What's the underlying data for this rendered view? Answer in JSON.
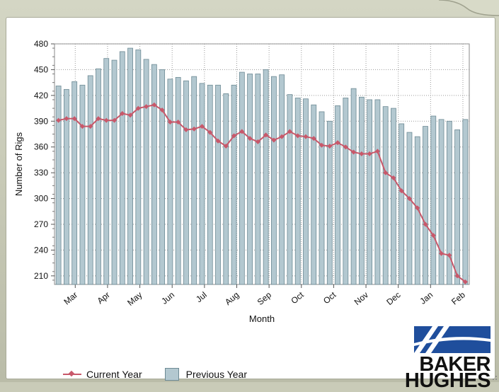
{
  "colors": {
    "current_line": "#c8586a",
    "previous_bar_fill": "#b3c8d0",
    "previous_bar_stroke": "#6d8a94",
    "logo_blue": "#1f4e9c"
  },
  "chart_data": {
    "type": "bar",
    "title": "",
    "xlabel": "Month",
    "ylabel": "Number of Rigs",
    "ylim": [
      200,
      480
    ],
    "yticks": [
      210,
      240,
      270,
      300,
      330,
      360,
      390,
      420,
      450,
      480
    ],
    "grid": true,
    "legend_position": "bottom-left",
    "month_labels": [
      "Mar",
      "Apr",
      "May",
      "Jun",
      "Jul",
      "Aug",
      "Sep",
      "Oct",
      "Oct",
      "Nov",
      "Dec",
      "Jan",
      "Feb"
    ],
    "series": [
      {
        "name": "Current Year",
        "type": "line",
        "values": [
          391,
          393,
          393,
          384,
          384,
          393,
          391,
          391,
          399,
          397,
          405,
          407,
          409,
          403,
          389,
          389,
          380,
          381,
          384,
          377,
          367,
          361,
          373,
          378,
          370,
          366,
          374,
          368,
          372,
          378,
          373,
          372,
          370,
          362,
          361,
          365,
          360,
          354,
          352,
          352,
          355,
          330,
          324,
          309,
          300,
          289,
          270,
          257,
          236,
          234,
          210,
          203
        ]
      },
      {
        "name": "Previous Year",
        "type": "bar",
        "values": [
          431,
          427,
          436,
          432,
          443,
          451,
          463,
          461,
          471,
          475,
          473,
          462,
          456,
          450,
          439,
          441,
          437,
          442,
          434,
          432,
          432,
          422,
          432,
          447,
          445,
          445,
          450,
          442,
          444,
          421,
          417,
          416,
          409,
          401,
          390,
          408,
          417,
          428,
          418,
          415,
          415,
          407,
          405,
          387,
          377,
          372,
          384,
          396,
          392,
          390,
          380,
          392
        ]
      }
    ]
  },
  "logo": {
    "line1": "BAKER",
    "line2": "HUGHES"
  }
}
